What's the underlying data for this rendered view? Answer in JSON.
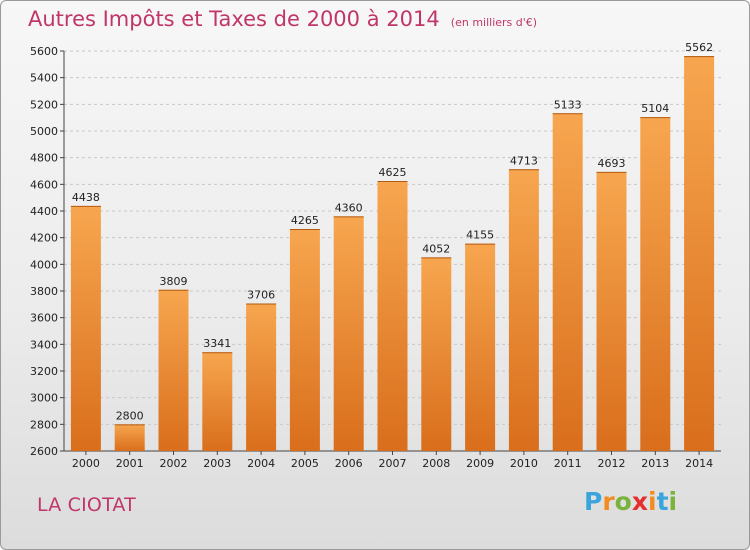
{
  "title": "Autres Impôts et Taxes de 2000 à 2014",
  "subtitle": "(en milliers d'€)",
  "city": "LA CIOTAT",
  "logo": {
    "letters": [
      "P",
      "r",
      "o",
      "x",
      "i",
      "t",
      "i"
    ],
    "colors": [
      "#3aa4dc",
      "#f18c22",
      "#7ab33b",
      "#e52f2f",
      "#f18c22",
      "#3aa4dc",
      "#7ab33b"
    ]
  },
  "colors": {
    "title": "#c0366a",
    "bar_light": "#f7a64f",
    "bar_dark": "#d96e1c"
  },
  "chart_data": {
    "type": "bar",
    "categories": [
      "2000",
      "2001",
      "2002",
      "2003",
      "2004",
      "2005",
      "2006",
      "2007",
      "2008",
      "2009",
      "2010",
      "2011",
      "2012",
      "2013",
      "2014"
    ],
    "values": [
      4438,
      2800,
      3809,
      3341,
      3706,
      4265,
      4360,
      4625,
      4052,
      4155,
      4713,
      5133,
      4693,
      5104,
      5562
    ],
    "ylim": [
      2600,
      5600
    ],
    "yticks": [
      2600,
      2800,
      3000,
      3200,
      3400,
      3600,
      3800,
      4000,
      4200,
      4400,
      4600,
      4800,
      5000,
      5200,
      5400,
      5600
    ],
    "grid": true,
    "data_labels": true
  }
}
